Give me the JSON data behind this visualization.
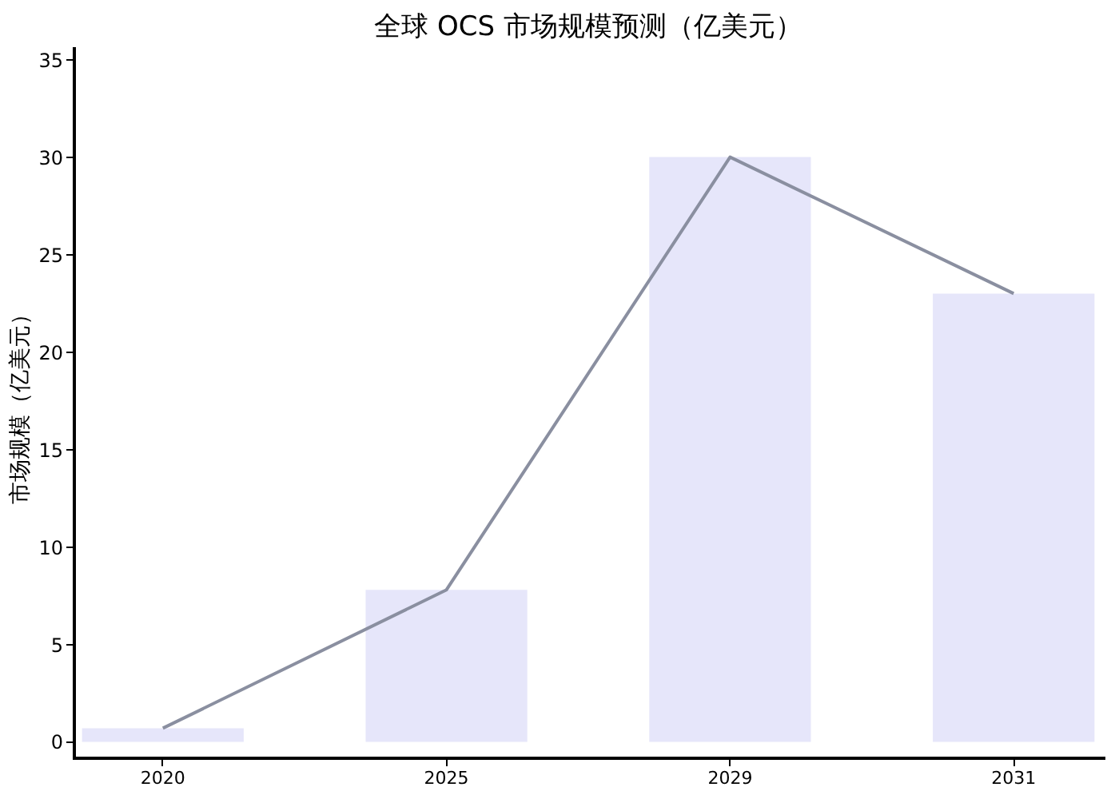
{
  "chart_data": {
    "type": "bar",
    "title": "全球 OCS 市场规模预测（亿美元）",
    "ylabel": "市场规模（亿美元）",
    "categories": [
      "2020",
      "2025",
      "2029",
      "2031"
    ],
    "series": [
      {
        "color": "#e6e6fa",
        "values": [
          0.7,
          7.8,
          30,
          23
        ]
      },
      {
        "type": "line",
        "color": "#8a8fa0",
        "values": [
          0.7,
          7.8,
          30,
          23
        ]
      }
    ],
    "ylim": [
      -0.8,
      35.6
    ],
    "yticks": [
      0,
      5,
      10,
      15,
      20,
      25,
      30,
      35
    ],
    "grid": false,
    "marker": "none",
    "line_style": "solid"
  }
}
